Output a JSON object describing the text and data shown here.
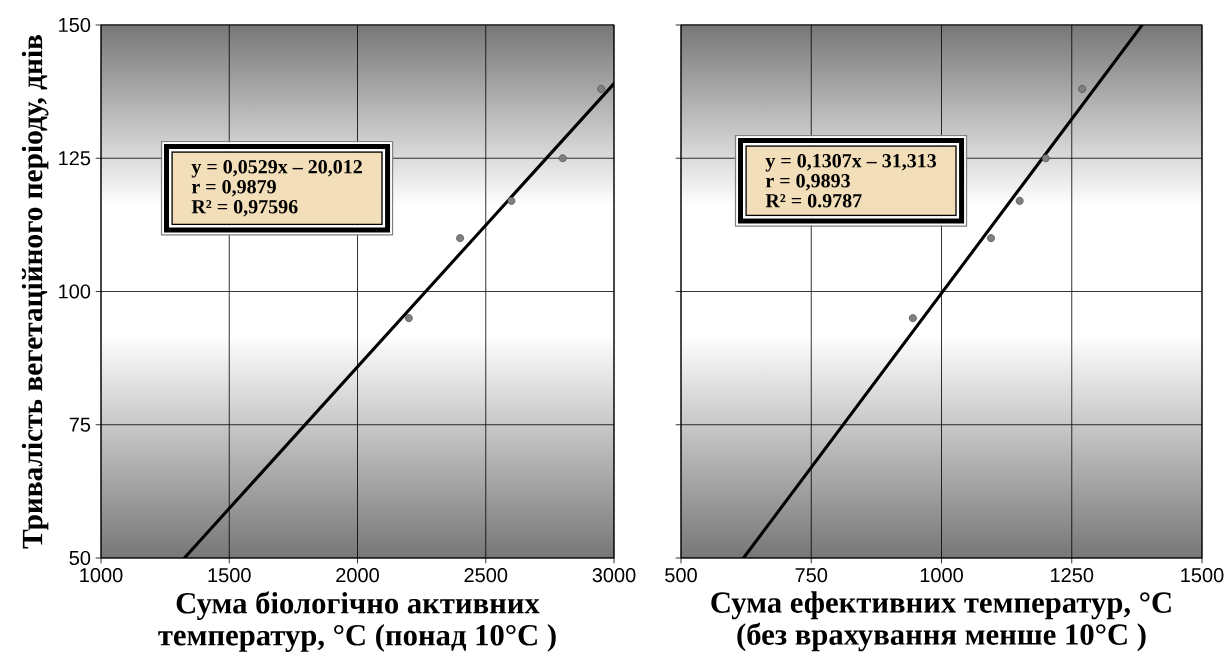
{
  "chart_data": [
    {
      "type": "scatter",
      "ylabel": "Тривалість вегетаційного періоду, днів",
      "xlabel": "Сума біологічно активних температур, °C (понад 10°C )",
      "annotations": [
        "y = 0,0529x – 20,012",
        "r = 0,9879",
        "R² = 0,97596"
      ],
      "xlim": [
        1000,
        3000
      ],
      "xticks": [
        1000,
        1500,
        2000,
        2500,
        3000
      ],
      "ylim": [
        50,
        150
      ],
      "yticks": [
        50,
        75,
        100,
        125,
        150
      ],
      "grid": true,
      "series": [
        {
          "marker": "circle",
          "color": "#808080",
          "x": [
            2200,
            2400,
            2600,
            2800,
            2950
          ],
          "values": [
            95,
            110,
            117,
            125,
            138
          ]
        },
        {
          "type": "line",
          "color": "#000000",
          "x": [
            1325,
            3000
          ],
          "values": [
            50,
            139
          ]
        }
      ]
    },
    {
      "type": "scatter",
      "xlabel": "Сума ефективних температур, °C (без врахування менше 10°C )",
      "annotations": [
        "y = 0,1307x – 31,313",
        "r = 0,9893",
        "R² = 0.9787"
      ],
      "xlim": [
        500,
        1500
      ],
      "xticks": [
        500,
        750,
        1000,
        1250,
        1500
      ],
      "ylim": [
        50,
        150
      ],
      "yticks": [
        50,
        75,
        100,
        125,
        150
      ],
      "grid": true,
      "tick_labels": "x",
      "series": [
        {
          "marker": "circle",
          "color": "#808080",
          "x": [
            945,
            1095,
            1150,
            1200,
            1270
          ],
          "values": [
            95,
            110,
            117,
            125,
            138
          ]
        },
        {
          "type": "line",
          "color": "#000000",
          "x": [
            620,
            1385
          ],
          "values": [
            50,
            150
          ]
        }
      ]
    }
  ]
}
